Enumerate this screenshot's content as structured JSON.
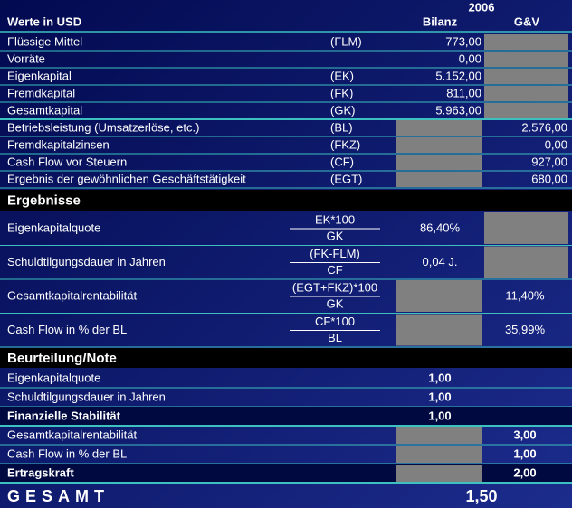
{
  "header": {
    "year": "2006",
    "title": "Werte in USD",
    "col_bilanz": "Bilanz",
    "col_guv": "G&V"
  },
  "inputs": [
    {
      "label": "Flüssige Mittel",
      "abbr": "(FLM)",
      "bilanz": "773,00"
    },
    {
      "label": "Vorräte",
      "bilanz": "0,00"
    },
    {
      "label": "Eigenkapital",
      "abbr": "(EK)",
      "bilanz": "5.152,00"
    },
    {
      "label": "Fremdkapital",
      "abbr": "(FK)",
      "bilanz": "811,00"
    },
    {
      "label": "Gesamtkapital",
      "abbr": "(GK)",
      "bilanz": "5.963,00"
    },
    {
      "label": "Betriebsleistung (Umsatzerlöse, etc.)",
      "abbr": "(BL)",
      "guv": "2.576,00"
    },
    {
      "label": "Fremdkapitalzinsen",
      "abbr": "(FKZ)",
      "guv": "0,00"
    },
    {
      "label": "Cash Flow vor Steuern",
      "abbr": "(CF)",
      "guv": "927,00"
    },
    {
      "label": "Ergebnis der gewöhnlichen Geschäftstätigkeit",
      "abbr": "(EGT)",
      "guv": "680,00"
    }
  ],
  "results": {
    "title": "Ergebnisse",
    "rows": [
      {
        "label": "Eigenkapitalquote",
        "numerator": "EK*100",
        "denominator": "GK",
        "bilanz": "86,40%"
      },
      {
        "label": "Schuldtilgungsdauer in Jahren",
        "numerator": "(FK-FLM)",
        "denominator": "CF",
        "bilanz": "0,04 J."
      },
      {
        "label": "Gesamtkapitalrentabilität",
        "numerator": "(EGT+FKZ)*100",
        "denominator": "GK",
        "guv": "11,40%"
      },
      {
        "label": "Cash Flow in % der BL",
        "numerator": "CF*100",
        "denominator": "BL",
        "guv": "35,99%"
      }
    ]
  },
  "rating": {
    "title": "Beurteilung/Note",
    "rows": [
      {
        "label": "Eigenkapitalquote",
        "bilanz": "1,00",
        "bold": false
      },
      {
        "label": "Schuldtilgungsdauer in Jahren",
        "bilanz": "1,00",
        "bold": false
      },
      {
        "label": "Finanzielle Stabilität",
        "bilanz": "1,00",
        "bold": true
      },
      {
        "label": "Gesamtkapitalrentabilität",
        "guv": "3,00",
        "bold": false
      },
      {
        "label": "Cash Flow in % der BL",
        "guv": "1,00",
        "bold": false
      },
      {
        "label": "Ertragskraft",
        "guv": "2,00",
        "bold": true
      }
    ]
  },
  "total": {
    "label": "GESAMT",
    "value": "1,50"
  }
}
